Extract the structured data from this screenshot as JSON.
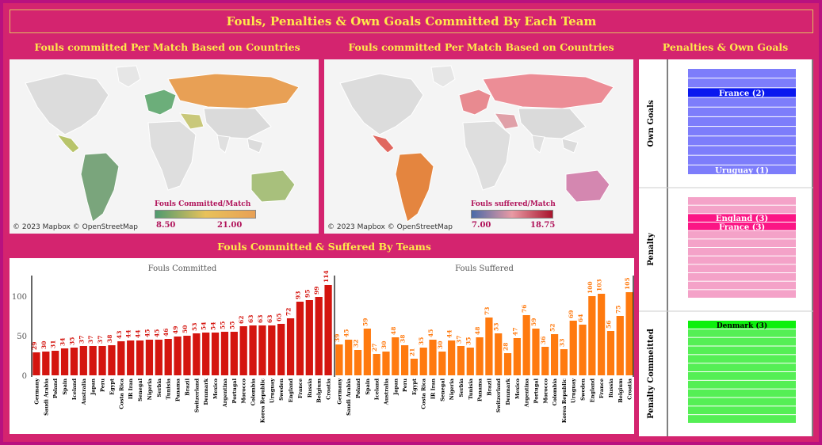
{
  "header": {
    "title": "Fouls, Penalties & Own Goals Committed By Each Team"
  },
  "map1": {
    "title": "Fouls committed Per Match Based on Countries",
    "credit": "© 2023 Mapbox © OpenStreetMap",
    "legend_title": "Fouls Committed/Match",
    "legend_min": "8.50",
    "legend_max": "21.00",
    "colors": {
      "low": "#4f9a6f",
      "mid": "#e8c25a",
      "high": "#e8a055"
    }
  },
  "map2": {
    "title": "Fouls committed Per Match Based on Countries",
    "credit": "© 2023 Mapbox © OpenStreetMap",
    "legend_title": "Fouls suffered/Match",
    "legend_min": "7.00",
    "legend_max": "18.75",
    "colors": {
      "low": "#4a6aa8",
      "mid": "#e99aa4",
      "high": "#a8142c"
    }
  },
  "bars_section": {
    "title": "Fouls Committed & Suffered By Teams"
  },
  "penalties_section": {
    "title": "Penalties & Own Goals"
  },
  "chart_data": [
    {
      "type": "bar",
      "title": "Fouls Committed",
      "color": "#d4150f",
      "categories": [
        "Germany",
        "Saudi Arabia",
        "Poland",
        "Spain",
        "Iceland",
        "Australia",
        "Japan",
        "Peru",
        "Egypt",
        "Costa Rica",
        "IR Iran",
        "Senegal",
        "Nigeria",
        "Serbia",
        "Tunisia",
        "Panama",
        "Brazil",
        "Switzerland",
        "Denmark",
        "Mexico",
        "Argentina",
        "Portugal",
        "Morocco",
        "Colombia",
        "Korea Republic",
        "Uruguay",
        "Sweden",
        "England",
        "France",
        "Russia",
        "Belgium",
        "Croatia"
      ],
      "values": [
        29,
        30,
        31,
        34,
        35,
        37,
        37,
        37,
        38,
        43,
        44,
        44,
        45,
        45,
        46,
        49,
        50,
        53,
        54,
        54,
        55,
        55,
        62,
        63,
        63,
        63,
        65,
        72,
        93,
        95,
        99,
        114
      ],
      "yticks": [
        0,
        50,
        100
      ],
      "ylim": [
        0,
        120
      ]
    },
    {
      "type": "bar",
      "title": "Fouls Suffered",
      "color": "#ff7a0f",
      "categories": [
        "Germany",
        "Saudi Arabia",
        "Poland",
        "Spain",
        "Iceland",
        "Australia",
        "Japan",
        "Peru",
        "Egypt",
        "Costa Rica",
        "IR Iran",
        "Senegal",
        "Nigeria",
        "Serbia",
        "Tunisia",
        "Panama",
        "Brazil",
        "Switzerland",
        "Denmark",
        "Mexico",
        "Argentina",
        "Portugal",
        "Morocco",
        "Colombia",
        "Korea Republic",
        "Uruguay",
        "Sweden",
        "England",
        "France",
        "Russia",
        "Belgium",
        "Croatia"
      ],
      "values": [
        39,
        45,
        32,
        59,
        27,
        30,
        48,
        38,
        21,
        35,
        45,
        30,
        44,
        37,
        35,
        48,
        73,
        53,
        28,
        47,
        76,
        59,
        36,
        52,
        33,
        69,
        64,
        100,
        103,
        56,
        75,
        105
      ],
      "ylim": [
        0,
        120
      ]
    },
    {
      "type": "table",
      "rows": [
        {
          "label": "Own Goals",
          "color": "#7d7dfb",
          "highlight": "#0a18ef",
          "count": 11,
          "labels": [
            {
              "text": "France (2)",
              "index": 2
            },
            {
              "text": "Uruguay (1)",
              "index": 10
            }
          ]
        },
        {
          "label": "Penalty",
          "color": "#f4a2c8",
          "highlight": "#fb1685",
          "count": 12,
          "labels": [
            {
              "text": "England (3)",
              "index": 2
            },
            {
              "text": "France (3)",
              "index": 3
            }
          ]
        },
        {
          "label": "Penalty Commeitted",
          "color": "#55ef55",
          "highlight": "#0cf00c",
          "count": 12,
          "labels": [
            {
              "text": "Denmark (3)",
              "index": 0
            }
          ]
        }
      ]
    }
  ]
}
